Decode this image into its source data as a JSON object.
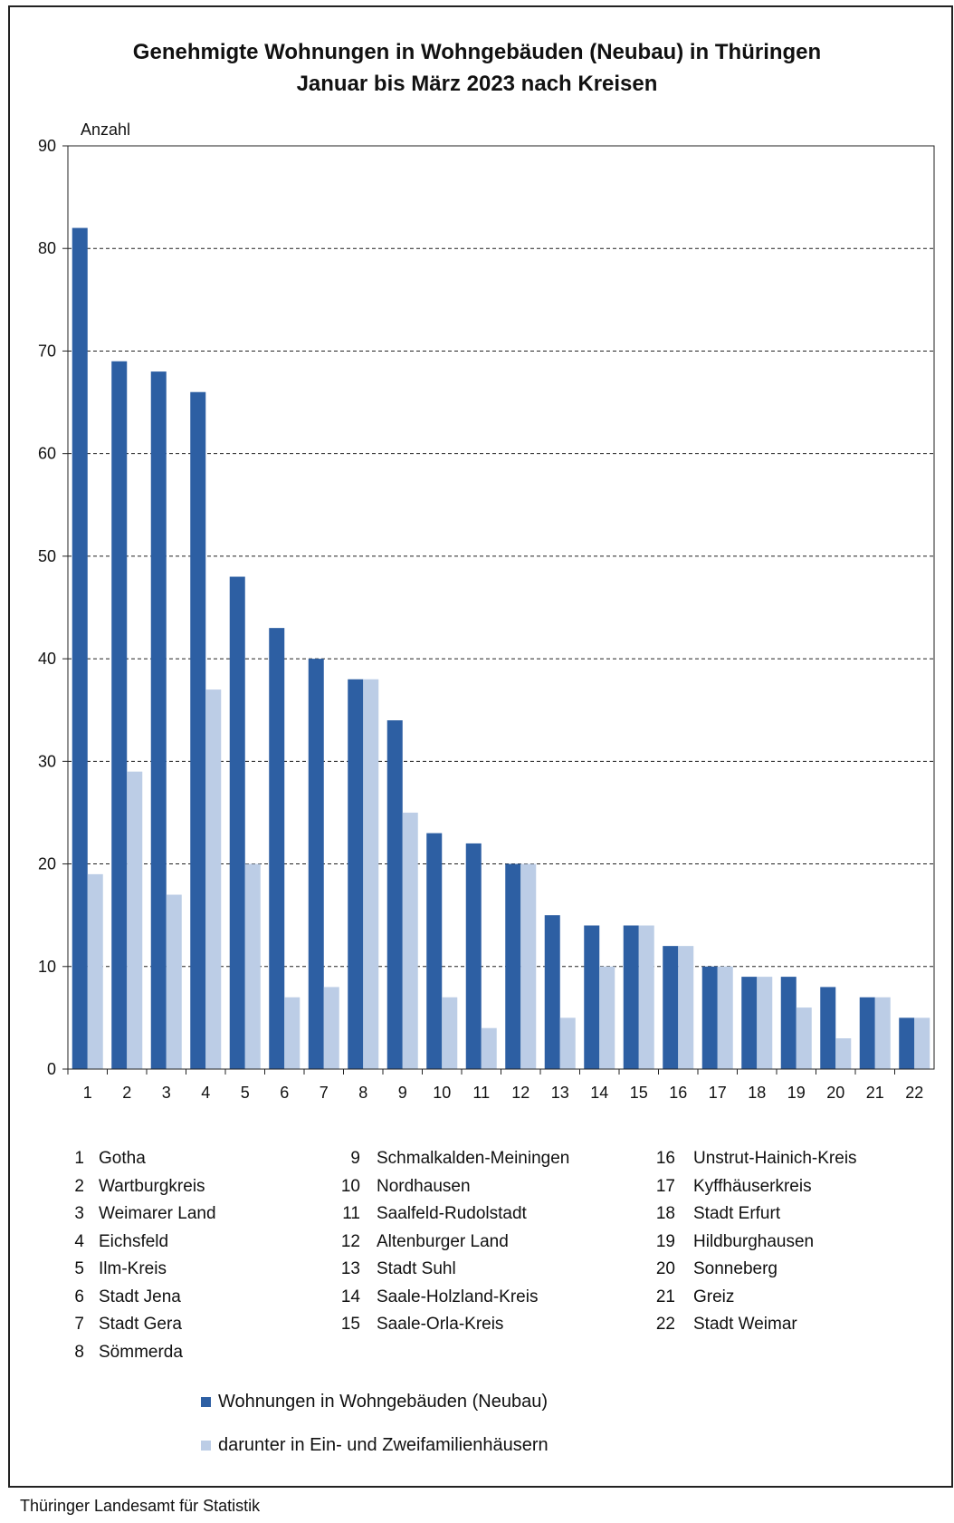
{
  "title_line1": "Genehmigte Wohnungen in Wohngebäuden (Neubau) in Thüringen",
  "title_line2": "Januar bis März 2023 nach Kreisen",
  "source": "Thüringer Landesamt für Statistik",
  "colors": {
    "series1": "#2d5fa3",
    "series2": "#bccde6",
    "grid": "#222222"
  },
  "chart_data": {
    "type": "bar",
    "ylabel": "Anzahl",
    "ylim": [
      0,
      90
    ],
    "yticks": [
      0,
      10,
      20,
      30,
      40,
      50,
      60,
      70,
      80,
      90
    ],
    "grid": "dashed horizontal",
    "categories": [
      "1",
      "2",
      "3",
      "4",
      "5",
      "6",
      "7",
      "8",
      "9",
      "10",
      "11",
      "12",
      "13",
      "14",
      "15",
      "16",
      "17",
      "18",
      "19",
      "20",
      "21",
      "22"
    ],
    "series": [
      {
        "name": "Wohnungen in Wohngebäuden (Neubau)",
        "values": [
          82,
          69,
          68,
          66,
          48,
          43,
          40,
          38,
          34,
          23,
          22,
          20,
          15,
          14,
          14,
          12,
          10,
          9,
          9,
          8,
          7,
          5
        ]
      },
      {
        "name": "darunter in Ein- und Zweifamilienhäusern",
        "values": [
          19,
          29,
          17,
          37,
          20,
          7,
          8,
          38,
          25,
          7,
          4,
          20,
          5,
          10,
          14,
          12,
          10,
          9,
          6,
          3,
          7,
          5
        ]
      }
    ]
  },
  "districts": [
    {
      "num": "1",
      "name": "Gotha"
    },
    {
      "num": "2",
      "name": "Wartburgkreis"
    },
    {
      "num": "3",
      "name": "Weimarer Land"
    },
    {
      "num": "4",
      "name": "Eichsfeld"
    },
    {
      "num": "5",
      "name": "Ilm-Kreis"
    },
    {
      "num": "6",
      "name": "Stadt Jena"
    },
    {
      "num": "7",
      "name": "Stadt Gera"
    },
    {
      "num": "8",
      "name": "Sömmerda"
    },
    {
      "num": "9",
      "name": "Schmalkalden-Meiningen"
    },
    {
      "num": "10",
      "name": "Nordhausen"
    },
    {
      "num": "11",
      "name": "Saalfeld-Rudolstadt"
    },
    {
      "num": "12",
      "name": "Altenburger Land"
    },
    {
      "num": "13",
      "name": "Stadt Suhl"
    },
    {
      "num": "14",
      "name": "Saale-Holzland-Kreis"
    },
    {
      "num": "15",
      "name": "Saale-Orla-Kreis"
    },
    {
      "num": "16",
      "name": "Unstrut-Hainich-Kreis"
    },
    {
      "num": "17",
      "name": "Kyffhäuserkreis"
    },
    {
      "num": "18",
      "name": "Stadt Erfurt"
    },
    {
      "num": "19",
      "name": "Hildburghausen"
    },
    {
      "num": "20",
      "name": "Sonneberg"
    },
    {
      "num": "21",
      "name": "Greiz"
    },
    {
      "num": "22",
      "name": "Stadt Weimar"
    }
  ]
}
